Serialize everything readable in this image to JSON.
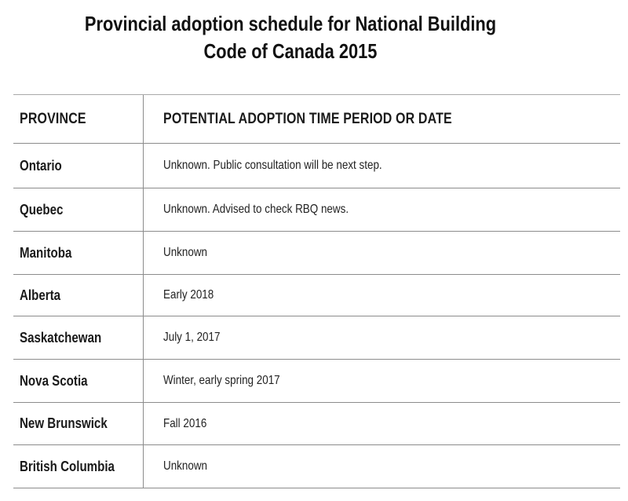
{
  "title": {
    "line1": "Provincial adoption schedule for National Building",
    "line2": "Code of Canada 2015"
  },
  "table": {
    "columns": {
      "province": "PROVINCE",
      "schedule": "POTENTIAL ADOPTION TIME PERIOD OR DATE"
    },
    "rows": [
      {
        "province": "Ontario",
        "schedule": "Unknown. Public consultation will be next step."
      },
      {
        "province": "Quebec",
        "schedule": "Unknown. Advised to check RBQ news."
      },
      {
        "province": "Manitoba",
        "schedule": "Unknown"
      },
      {
        "province": "Alberta",
        "schedule": "Early 2018"
      },
      {
        "province": "Saskatchewan",
        "schedule": "July 1, 2017"
      },
      {
        "province": "Nova Scotia",
        "schedule": "Winter, early spring 2017"
      },
      {
        "province": "New Brunswick",
        "schedule": "Fall 2016"
      },
      {
        "province": "British Columbia",
        "schedule": "Unknown"
      }
    ],
    "colors": {
      "rule_gray": "#8c8c8c",
      "text": "#1a1a1a",
      "background": "#ffffff"
    }
  }
}
